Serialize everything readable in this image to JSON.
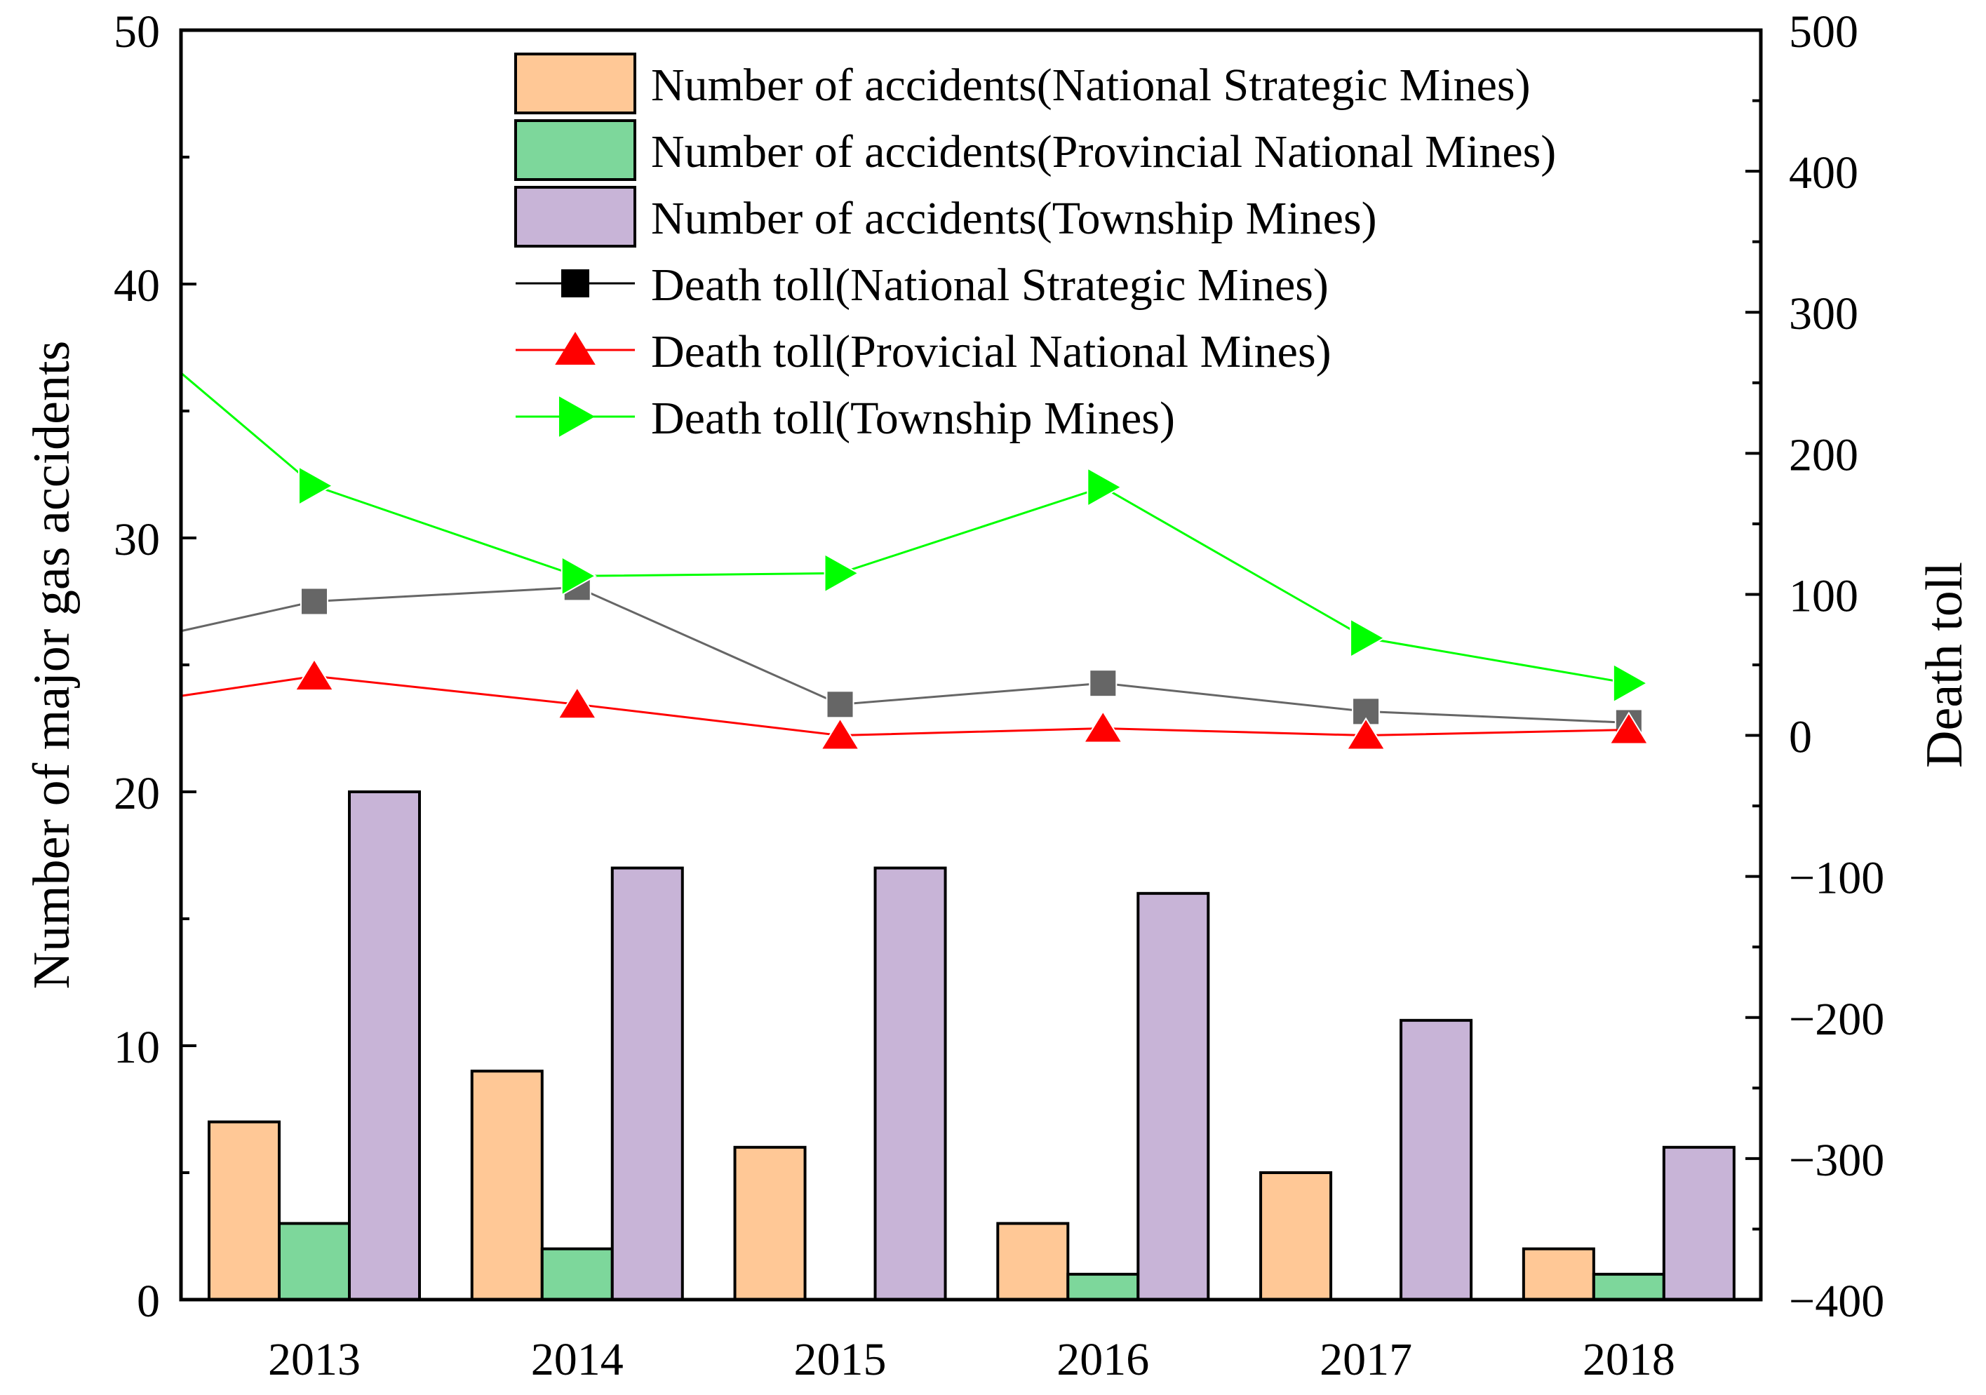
{
  "chart_data": {
    "type": "bar",
    "categories": [
      "2013",
      "2014",
      "2015",
      "2016",
      "2017",
      "2018"
    ],
    "xlabel": "",
    "ylabel": "Number of major gas accidents",
    "y2label": "Death toll",
    "ylim": [
      0,
      50
    ],
    "y2lim": [
      -400,
      500
    ],
    "yticks": [
      "0",
      "10",
      "20",
      "30",
      "40",
      "50"
    ],
    "y2ticks": [
      "−400",
      "−300",
      "−200",
      "−100",
      "0",
      "100",
      "200",
      "300",
      "400",
      "500"
    ],
    "bar_series": [
      {
        "name": "Number of accidents(National Strategic Mines)",
        "color": "#ffc896",
        "values": [
          7,
          9,
          6,
          3,
          5,
          2
        ]
      },
      {
        "name": "Number of accidents(Provincial National Mines)",
        "color": "#7dd79b",
        "values": [
          3,
          2,
          0,
          1,
          0,
          1
        ]
      },
      {
        "name": "Number of accidents(Township Mines)",
        "color": "#c8b4d7",
        "values": [
          20,
          17,
          17,
          16,
          11,
          6
        ]
      }
    ],
    "line_series": [
      {
        "name": "Death toll(National Strategic Mines)",
        "color": "#666666",
        "legend_marker_color": "#000000",
        "marker": "square",
        "values": [
          95,
          105,
          22,
          37,
          17,
          9
        ],
        "left_edge_value": 74
      },
      {
        "name": "Death toll(Provicial National Mines)",
        "color": "#ff0000",
        "legend_marker_color": "#ff0000",
        "marker": "triangle-up",
        "values": [
          42,
          22,
          0,
          5,
          0,
          4
        ],
        "left_edge_value": 28
      },
      {
        "name": "Death toll(Township Mines)",
        "color": "#00ff00",
        "legend_marker_color": "#00ff00",
        "marker": "triangle-right",
        "values": [
          177,
          113,
          115,
          176,
          69,
          37
        ],
        "left_edge_value": 257
      }
    ],
    "legend_position": "top-center",
    "grid": false
  }
}
